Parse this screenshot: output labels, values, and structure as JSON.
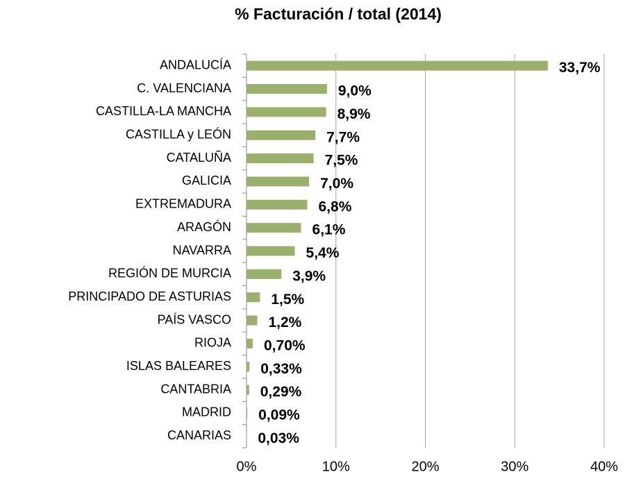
{
  "chart_data": {
    "type": "barh",
    "title": "% Facturación / total (2014)",
    "categories": [
      "ANDALUCÍA",
      "C. VALENCIANA",
      "CASTILLA-LA MANCHA",
      "CASTILLA y LEÓN",
      "CATALUÑA",
      "GALICIA",
      "EXTREMADURA",
      "ARAGÓN",
      "NAVARRA",
      "REGIÓN DE MURCIA",
      "PRINCIPADO DE ASTURIAS",
      "PAÍS VASCO",
      "RIOJA",
      "ISLAS BALEARES",
      "CANTABRIA",
      "MADRID",
      "CANARIAS"
    ],
    "values": [
      33.7,
      9.0,
      8.9,
      7.7,
      7.5,
      7.0,
      6.8,
      6.1,
      5.4,
      3.9,
      1.5,
      1.2,
      0.7,
      0.33,
      0.29,
      0.09,
      0.03
    ],
    "value_labels": [
      "33,7%",
      "9,0%",
      "8,9%",
      "7,7%",
      "7,5%",
      "7,0%",
      "6,8%",
      "6,1%",
      "5,4%",
      "3,9%",
      "1,5%",
      "1,2%",
      "0,70%",
      "0,33%",
      "0,29%",
      "0,09%",
      "0,03%"
    ],
    "color": "#9bb06a",
    "xlim": [
      0,
      40
    ],
    "xticks": [
      {
        "value": 0,
        "label": "0%"
      },
      {
        "value": 10,
        "label": "10%"
      },
      {
        "value": 20,
        "label": "20%"
      },
      {
        "value": 30,
        "label": "30%"
      },
      {
        "value": 40,
        "label": "40%"
      }
    ],
    "grid": true
  }
}
